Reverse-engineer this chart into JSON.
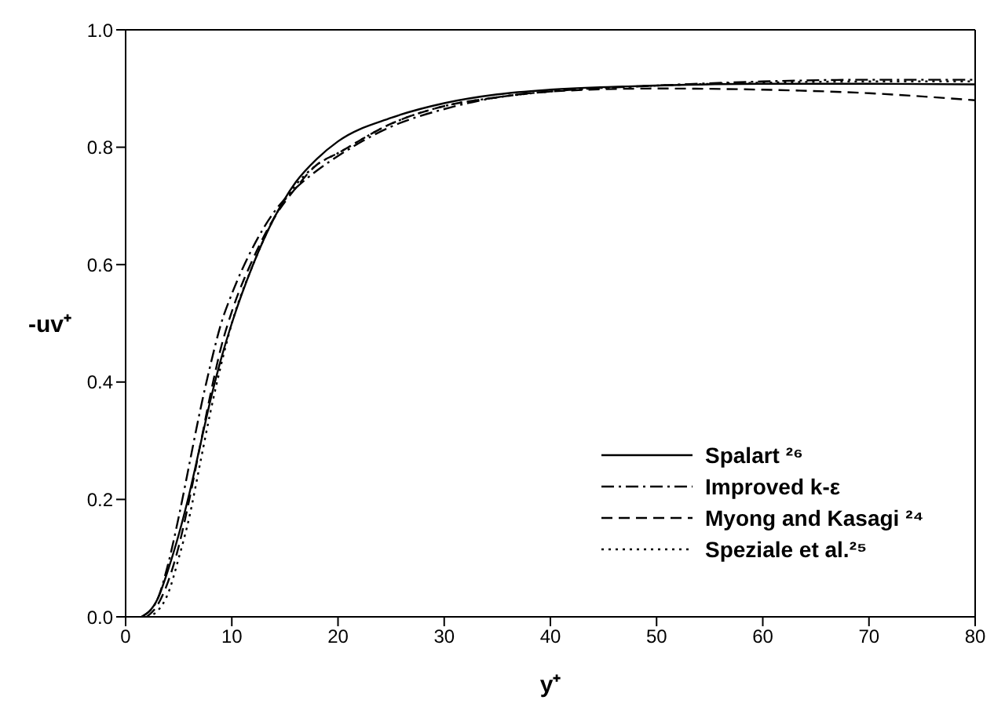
{
  "chart_data": {
    "type": "line",
    "xlabel": "y⁺",
    "ylabel": "-uv⁺",
    "xlim": [
      0,
      80
    ],
    "xticks": [
      0,
      10,
      20,
      30,
      40,
      50,
      60,
      70,
      80
    ],
    "ylim": [
      0,
      1
    ],
    "yticks": [
      {
        "value": 0,
        "label": "0.0"
      },
      {
        "value": 0.2,
        "label": "0.2"
      },
      {
        "value": 0.4,
        "label": "0.4"
      },
      {
        "value": 0.6,
        "label": "0.6"
      },
      {
        "value": 0.8,
        "label": "0.8"
      },
      {
        "value": 1,
        "label": "1.0"
      }
    ],
    "grid": false,
    "legend": "bottom right",
    "marker": "none",
    "series": [
      {
        "name": "Spalart ²⁶",
        "color": "#000000",
        "line_style": "solid",
        "x": [
          1.5,
          3,
          4,
          5,
          6,
          7,
          8,
          9,
          10,
          12,
          14,
          16,
          18,
          20,
          25,
          30,
          35,
          40,
          50,
          60,
          70,
          80
        ],
        "values": [
          0,
          0.03,
          0.08,
          0.14,
          0.21,
          0.29,
          0.37,
          0.44,
          0.5,
          0.6,
          0.68,
          0.74,
          0.78,
          0.81,
          0.85,
          0.875,
          0.89,
          0.898,
          0.905,
          0.908,
          0.908,
          0.907
        ]
      },
      {
        "name": "Improved k-ε",
        "color": "#000000",
        "line_style": "dashdot",
        "x": [
          1.5,
          3,
          4,
          5,
          6,
          7,
          8,
          9,
          10,
          12,
          14,
          16,
          18,
          20,
          25,
          30,
          35,
          40,
          50,
          60,
          70,
          80
        ],
        "values": [
          0,
          0.03,
          0.09,
          0.17,
          0.26,
          0.35,
          0.43,
          0.5,
          0.55,
          0.63,
          0.69,
          0.73,
          0.76,
          0.785,
          0.835,
          0.865,
          0.885,
          0.895,
          0.905,
          0.912,
          0.915,
          0.915
        ]
      },
      {
        "name": "Myong and Kasagi ²⁴",
        "color": "#000000",
        "line_style": "dashed",
        "x": [
          2,
          3,
          4,
          5,
          6,
          7,
          8,
          9,
          10,
          12,
          14,
          16,
          18,
          20,
          25,
          30,
          35,
          40,
          50,
          60,
          70,
          80
        ],
        "values": [
          0,
          0.02,
          0.06,
          0.12,
          0.2,
          0.29,
          0.38,
          0.46,
          0.52,
          0.61,
          0.68,
          0.73,
          0.77,
          0.79,
          0.84,
          0.87,
          0.885,
          0.895,
          0.9,
          0.898,
          0.892,
          0.88
        ]
      },
      {
        "name": "Speziale et al.²⁵",
        "color": "#000000",
        "line_style": "dotted",
        "x": [
          2,
          3,
          4,
          5,
          6,
          7,
          8,
          9,
          10,
          12,
          14,
          16,
          18,
          20,
          25,
          30,
          35,
          40,
          50,
          60,
          70,
          80
        ],
        "values": [
          0,
          0.01,
          0.04,
          0.1,
          0.17,
          0.26,
          0.35,
          0.43,
          0.5,
          0.6,
          0.68,
          0.735,
          0.77,
          0.79,
          0.84,
          0.87,
          0.885,
          0.895,
          0.905,
          0.91,
          0.912,
          0.912
        ]
      }
    ]
  }
}
